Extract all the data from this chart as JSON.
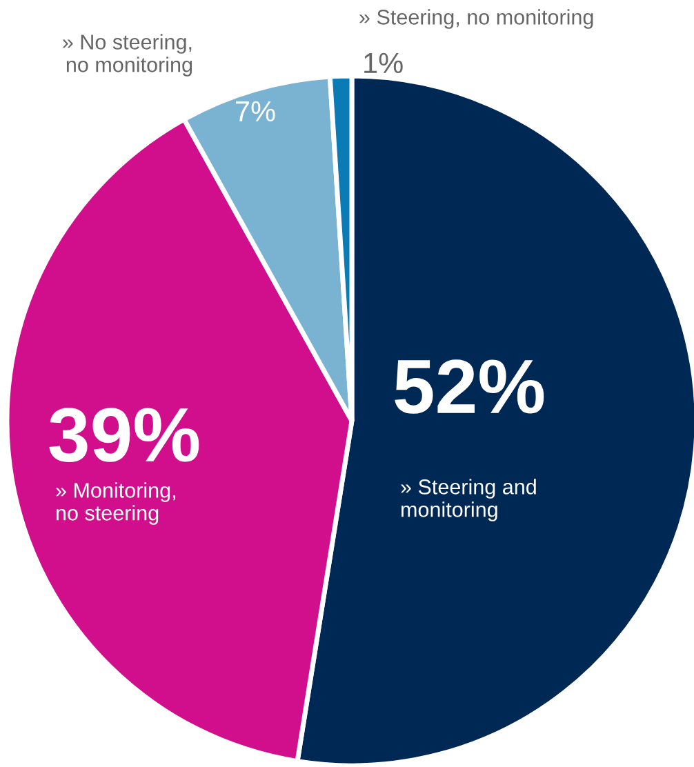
{
  "chart_data": {
    "type": "pie",
    "categories": [
      "» Steering and\nmonitoring",
      "» Monitoring,\nno steering",
      "» No steering,\nno monitoring",
      "» Steering, no monitoring"
    ],
    "values": [
      52,
      39,
      7,
      1
    ],
    "value_labels": [
      "52%",
      "39%",
      "7%",
      "1%"
    ],
    "colors": [
      "#002855",
      "#d10f8c",
      "#7ab3d1",
      "#0a7bb5"
    ],
    "legend": false
  }
}
